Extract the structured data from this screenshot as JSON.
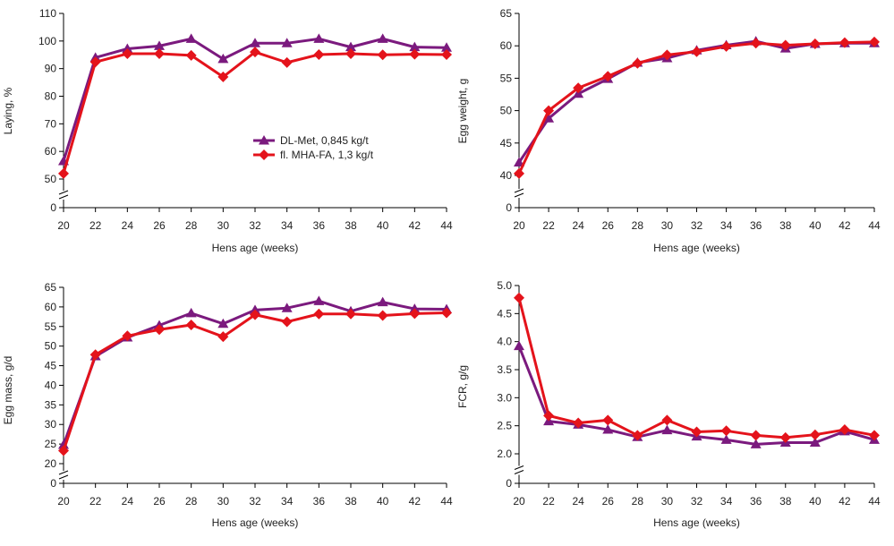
{
  "colors": {
    "dl": "#7b1a7e",
    "mha": "#e4131b"
  },
  "legend": {
    "dl": "DL-Met, 0,845 kg/t",
    "mha": "fl. MHA-FA, 1,3 kg/t"
  },
  "chart_data": [
    {
      "type": "line",
      "id": "laying",
      "xlabel": "Hens age (weeks)",
      "ylabel": "Laying, %",
      "x": [
        20,
        22,
        24,
        26,
        28,
        30,
        32,
        34,
        36,
        38,
        40,
        42,
        44
      ],
      "xlim": [
        20,
        44
      ],
      "ylim": [
        50,
        110
      ],
      "ytick_values": [
        0,
        50,
        60,
        70,
        80,
        90,
        100,
        110
      ],
      "ytick_labels": [
        "0",
        "50",
        "60",
        "70",
        "80",
        "90",
        "100",
        "110"
      ],
      "xtick_labels": [
        "20",
        "22",
        "24",
        "26",
        "28",
        "30",
        "32",
        "34",
        "36",
        "38",
        "40",
        "42",
        "44"
      ],
      "axis_break": true,
      "show_legend": true,
      "series": [
        {
          "name": "DL-Met, 0,845 kg/t",
          "marker": "triangle",
          "values": [
            56.5,
            94,
            97.2,
            98.2,
            100.8,
            93.5,
            99.2,
            99.2,
            100.8,
            97.8,
            100.8,
            97.8,
            97.6
          ]
        },
        {
          "name": "fl. MHA-FA, 1,3 kg/t",
          "marker": "diamond",
          "values": [
            52,
            92.4,
            95.4,
            95.4,
            94.8,
            87,
            96,
            92.2,
            95.1,
            95.4,
            95,
            95.2,
            95.1
          ]
        }
      ]
    },
    {
      "type": "line",
      "id": "egg-weight",
      "xlabel": "Hens age (weeks)",
      "ylabel": "Egg weight, g",
      "x": [
        20,
        22,
        24,
        26,
        28,
        30,
        32,
        34,
        36,
        38,
        40,
        42,
        44
      ],
      "xlim": [
        20,
        44
      ],
      "ylim": [
        40,
        65
      ],
      "ytick_values": [
        0,
        40,
        45,
        50,
        55,
        60,
        65
      ],
      "ytick_labels": [
        "0",
        "40",
        "45",
        "50",
        "55",
        "60",
        "65"
      ],
      "xtick_labels": [
        "20",
        "22",
        "24",
        "26",
        "28",
        "30",
        "32",
        "34",
        "36",
        "38",
        "40",
        "42",
        "44"
      ],
      "axis_break": true,
      "show_legend": false,
      "series": [
        {
          "name": "DL-Met, 0,845 kg/t",
          "marker": "triangle",
          "values": [
            42,
            48.8,
            52.6,
            54.9,
            57.4,
            58.1,
            59.3,
            60.1,
            60.7,
            59.6,
            60.3,
            60.4,
            60.4
          ]
        },
        {
          "name": "fl. MHA-FA, 1,3 kg/t",
          "marker": "diamond",
          "values": [
            40.3,
            50,
            53.5,
            55.3,
            57.3,
            58.6,
            59.1,
            59.9,
            60.4,
            60.1,
            60.3,
            60.5,
            60.6
          ]
        }
      ]
    },
    {
      "type": "line",
      "id": "egg-mass",
      "xlabel": "Hens age (weeks)",
      "ylabel": "Egg mass, g/d",
      "x": [
        20,
        22,
        24,
        26,
        28,
        30,
        32,
        34,
        36,
        38,
        40,
        42,
        44
      ],
      "xlim": [
        20,
        44
      ],
      "ylim": [
        20,
        65
      ],
      "ytick_values": [
        0,
        20,
        25,
        30,
        35,
        40,
        45,
        50,
        55,
        60,
        65
      ],
      "ytick_labels": [
        "0",
        "20",
        "25",
        "30",
        "35",
        "40",
        "45",
        "50",
        "55",
        "60",
        "65"
      ],
      "xtick_labels": [
        "20",
        "22",
        "24",
        "26",
        "28",
        "30",
        "32",
        "34",
        "36",
        "38",
        "40",
        "42",
        "44"
      ],
      "axis_break": true,
      "show_legend": false,
      "series": [
        {
          "name": "DL-Met, 0,845 kg/t",
          "marker": "triangle",
          "values": [
            24.8,
            47.4,
            52.2,
            55.3,
            58.4,
            55.7,
            59.2,
            59.7,
            61.5,
            58.9,
            61.2,
            59.5,
            59.4
          ]
        },
        {
          "name": "fl. MHA-FA, 1,3 kg/t",
          "marker": "diamond",
          "values": [
            23.3,
            47.8,
            52.6,
            54.2,
            55.4,
            52.4,
            58,
            56.2,
            58.2,
            58.2,
            57.8,
            58.3,
            58.5
          ]
        }
      ]
    },
    {
      "type": "line",
      "id": "fcr",
      "xlabel": "Hens age (weeks)",
      "ylabel": "FCR, g/g",
      "x": [
        20,
        22,
        24,
        26,
        28,
        30,
        32,
        34,
        36,
        38,
        40,
        42,
        44
      ],
      "xlim": [
        20,
        44
      ],
      "ylim": [
        2.0,
        5.0
      ],
      "ytick_values": [
        0,
        2.0,
        2.5,
        3.0,
        3.5,
        4.0,
        4.5,
        5.0
      ],
      "ytick_labels": [
        "0",
        "2.0",
        "2.5",
        "3.0",
        "3.5",
        "4.0",
        "4.5",
        "5.0"
      ],
      "xtick_labels": [
        "20",
        "22",
        "24",
        "26",
        "28",
        "30",
        "32",
        "34",
        "36",
        "38",
        "40",
        "42",
        "44"
      ],
      "axis_break": true,
      "show_legend": false,
      "series": [
        {
          "name": "DL-Met, 0,845 kg/t",
          "marker": "triangle",
          "values": [
            3.92,
            2.58,
            2.52,
            2.43,
            2.3,
            2.42,
            2.31,
            2.25,
            2.17,
            2.2,
            2.2,
            2.4,
            2.25
          ]
        },
        {
          "name": "fl. MHA-FA, 1,3 kg/t",
          "marker": "diamond",
          "values": [
            4.78,
            2.68,
            2.55,
            2.6,
            2.33,
            2.6,
            2.39,
            2.41,
            2.33,
            2.29,
            2.34,
            2.43,
            2.33
          ]
        }
      ]
    }
  ]
}
